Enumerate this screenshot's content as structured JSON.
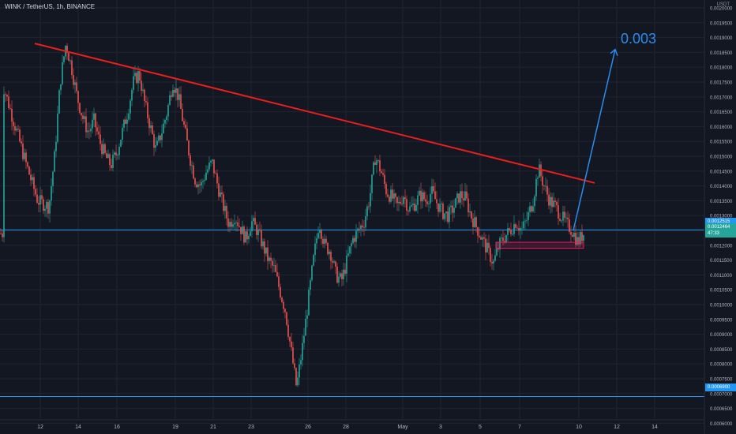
{
  "header": {
    "symbol_title": "WINK / TetherUS, 1h, BINANCE"
  },
  "axis": {
    "unit": "USDT"
  },
  "annotation": {
    "target_label": "0.003"
  },
  "price_tags": {
    "level_top": "0.0012515",
    "last_price": "0.0012464",
    "countdown": "47:33",
    "level_bottom": "0.0006900"
  },
  "colors": {
    "background": "#131722",
    "grid": "#1f2430",
    "up_candle": "#26a69a",
    "down_candle": "#ef5350",
    "trendline": "#e91e1e",
    "horizontal_level": "#2196f3",
    "arrow": "#2a8cf0",
    "support_zone": "#e91e63",
    "last_price_tag": "#26a69a"
  },
  "chart_data": {
    "type": "candlestick",
    "title": "WINK / TetherUS, 1h, BINANCE",
    "x_tick_labels": [
      "12",
      "14",
      "16",
      "19",
      "21",
      "23",
      "26",
      "28",
      "May",
      "3",
      "5",
      "7",
      "10",
      "12",
      "14"
    ],
    "y_tick_labels": [
      "0.0020000",
      "0.0019500",
      "0.0019000",
      "0.0018500",
      "0.0018000",
      "0.0017500",
      "0.0017000",
      "0.0016500",
      "0.0016000",
      "0.0015500",
      "0.0015000",
      "0.0014500",
      "0.0014000",
      "0.0013500",
      "0.0013000",
      "0.0012500",
      "0.0012000",
      "0.0011500",
      "0.0011000",
      "0.0010500",
      "0.0010000",
      "0.0009500",
      "0.0009000",
      "0.0008500",
      "0.0008000",
      "0.0007500",
      "0.0007000",
      "0.0006500",
      "0.0006000"
    ],
    "ylim": [
      0.00059,
      0.00201
    ],
    "grid": true,
    "trendline": {
      "from": [
        "Apr 11",
        0.00188
      ],
      "to": [
        "May 11",
        0.00141
      ]
    },
    "horizontal_levels": [
      0.0012515,
      0.00069
    ],
    "support_zone": {
      "from": "May 6",
      "to": "May 10",
      "low": 0.00119,
      "high": 0.00121
    },
    "projection_arrow": {
      "from": [
        "May 9",
        0.00125
      ],
      "to": [
        "May 11",
        0.00186
      ],
      "label": "0.003"
    },
    "price_path": [
      [
        0,
        0.00173
      ],
      [
        2,
        0.0016
      ],
      [
        4,
        0.00147
      ],
      [
        6,
        0.00135
      ],
      [
        8,
        0.00133
      ],
      [
        9,
        0.0015
      ],
      [
        10,
        0.00175
      ],
      [
        11,
        0.00188
      ],
      [
        12,
        0.0018
      ],
      [
        13,
        0.0017
      ],
      [
        14,
        0.00163
      ],
      [
        15,
        0.00158
      ],
      [
        16,
        0.00162
      ],
      [
        17,
        0.00155
      ],
      [
        18,
        0.0015
      ],
      [
        19,
        0.00147
      ],
      [
        20,
        0.00151
      ],
      [
        21,
        0.00158
      ],
      [
        22,
        0.00165
      ],
      [
        23,
        0.00175
      ],
      [
        24,
        0.00178
      ],
      [
        25,
        0.00168
      ],
      [
        26,
        0.0016
      ],
      [
        27,
        0.00152
      ],
      [
        28,
        0.00158
      ],
      [
        29,
        0.00165
      ],
      [
        30,
        0.00175
      ],
      [
        31,
        0.0017
      ],
      [
        32,
        0.0016
      ],
      [
        33,
        0.0015
      ],
      [
        34,
        0.00142
      ],
      [
        35,
        0.0014
      ],
      [
        36,
        0.00145
      ],
      [
        37,
        0.00148
      ],
      [
        38,
        0.0014
      ],
      [
        39,
        0.00133
      ],
      [
        40,
        0.00127
      ],
      [
        41,
        0.0013
      ],
      [
        42,
        0.00126
      ],
      [
        43,
        0.00122
      ],
      [
        44,
        0.00128
      ],
      [
        45,
        0.00125
      ],
      [
        46,
        0.0012
      ],
      [
        47,
        0.00115
      ],
      [
        48,
        0.00112
      ],
      [
        49,
        0.00105
      ],
      [
        50,
        0.00098
      ],
      [
        51,
        0.00085
      ],
      [
        52,
        0.00072
      ],
      [
        53,
        0.00085
      ],
      [
        54,
        0.001
      ],
      [
        55,
        0.00115
      ],
      [
        56,
        0.00128
      ],
      [
        57,
        0.0012
      ],
      [
        58,
        0.00118
      ],
      [
        59,
        0.0011
      ],
      [
        60,
        0.00108
      ],
      [
        61,
        0.00115
      ],
      [
        62,
        0.00122
      ],
      [
        63,
        0.00125
      ],
      [
        64,
        0.00128
      ],
      [
        65,
        0.00136
      ],
      [
        66,
        0.0015
      ],
      [
        67,
        0.00145
      ],
      [
        68,
        0.00138
      ],
      [
        69,
        0.00136
      ],
      [
        70,
        0.00133
      ],
      [
        71,
        0.00137
      ],
      [
        72,
        0.00132
      ],
      [
        73,
        0.00134
      ],
      [
        74,
        0.00137
      ],
      [
        75,
        0.00135
      ],
      [
        76,
        0.00138
      ],
      [
        77,
        0.00134
      ],
      [
        78,
        0.00131
      ],
      [
        79,
        0.0013
      ],
      [
        80,
        0.00133
      ],
      [
        81,
        0.00137
      ],
      [
        82,
        0.00136
      ],
      [
        83,
        0.0013
      ],
      [
        84,
        0.00126
      ],
      [
        85,
        0.00122
      ],
      [
        86,
        0.00118
      ],
      [
        87,
        0.00114
      ],
      [
        88,
        0.0012
      ],
      [
        89,
        0.00123
      ],
      [
        90,
        0.00125
      ],
      [
        91,
        0.00128
      ],
      [
        92,
        0.00125
      ],
      [
        93,
        0.00129
      ],
      [
        94,
        0.00135
      ],
      [
        95,
        0.00146
      ],
      [
        96,
        0.0014
      ],
      [
        97,
        0.00135
      ],
      [
        98,
        0.00133
      ],
      [
        99,
        0.0013
      ],
      [
        100,
        0.00127
      ],
      [
        101,
        0.00125
      ],
      [
        102,
        0.00121
      ],
      [
        103,
        0.00124
      ]
    ]
  }
}
